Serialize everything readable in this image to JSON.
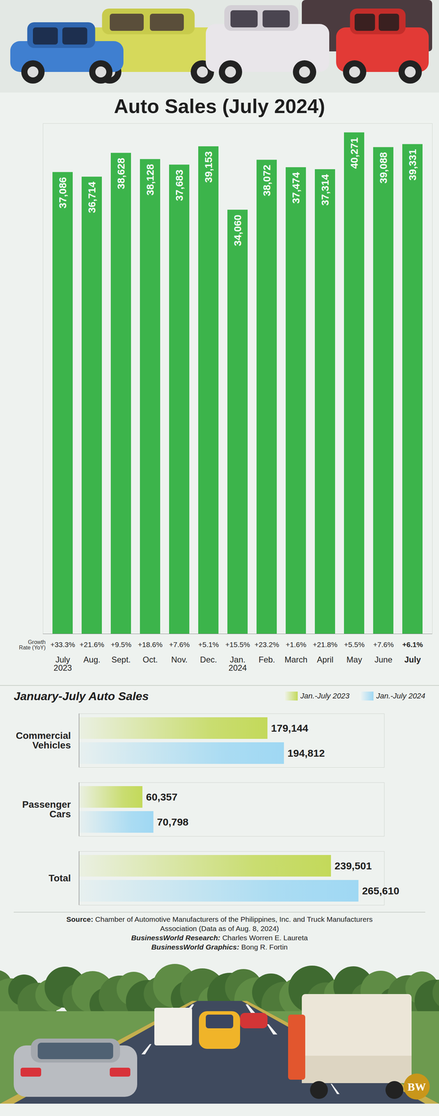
{
  "chart_data": [
    {
      "type": "bar",
      "title": "Auto Sales (July 2024)",
      "categories": [
        "July 2023",
        "Aug.",
        "Sept.",
        "Oct.",
        "Nov.",
        "Dec.",
        "Jan. 2024",
        "Feb.",
        "March",
        "April",
        "May",
        "June",
        "July"
      ],
      "values": [
        37086,
        36714,
        38628,
        38128,
        37683,
        39153,
        34060,
        38072,
        37474,
        37314,
        40271,
        39088,
        39331
      ],
      "value_labels": [
        "37,086",
        "36,714",
        "38,628",
        "38,128",
        "37,683",
        "39,153",
        "34,060",
        "38,072",
        "37,474",
        "37,314",
        "40,271",
        "39,088",
        "39,331"
      ],
      "growth_rate": {
        "label": "Growth Rate (YoY)",
        "values": [
          33.3,
          21.6,
          9.5,
          18.6,
          7.6,
          5.1,
          15.5,
          23.2,
          1.6,
          21.8,
          5.5,
          7.6,
          6.1
        ],
        "value_labels": [
          "+33.3%",
          "+21.6%",
          "+9.5%",
          "+18.6%",
          "+7.6%",
          "+5.1%",
          "+15.5%",
          "+23.2%",
          "+1.6%",
          "+21.8%",
          "+5.5%",
          "+7.6%",
          "+6.1%"
        ]
      },
      "color": "#3cb44b",
      "ylim": [
        0,
        41000
      ],
      "grid": false,
      "data_labels": true,
      "tick_labels": "x"
    },
    {
      "type": "bar",
      "title": "January-July Auto Sales",
      "orientation": "horizontal",
      "categories": [
        "Commercial Vehicles",
        "Passenger Cars",
        "Total"
      ],
      "series": [
        {
          "name": "Jan.-July 2023",
          "color": "#c3d95a",
          "values": [
            179144,
            60357,
            239501
          ],
          "value_labels": [
            "179,144",
            "60,357",
            "239,501"
          ]
        },
        {
          "name": "Jan.-July 2024",
          "color": "#9fd8f3",
          "values": [
            194812,
            70798,
            265610
          ],
          "value_labels": [
            "194,812",
            "70,798",
            "265,610"
          ]
        }
      ],
      "xlim": [
        0,
        290000
      ],
      "data_labels": true,
      "tick_labels": "y",
      "legend": "top-right"
    }
  ],
  "credits": {
    "source_label": "Source:",
    "source": "Chamber of Automotive Manufacturers of the Philippines, Inc. and Truck Manufacturers Association (Data as of Aug. 8, 2024)",
    "research_label": "BusinessWorld Research:",
    "research": "Charles Worren E. Laureta",
    "graphics_label": "BusinessWorld Graphics:",
    "graphics": "Bong R. Fortin"
  },
  "logo": "BW"
}
